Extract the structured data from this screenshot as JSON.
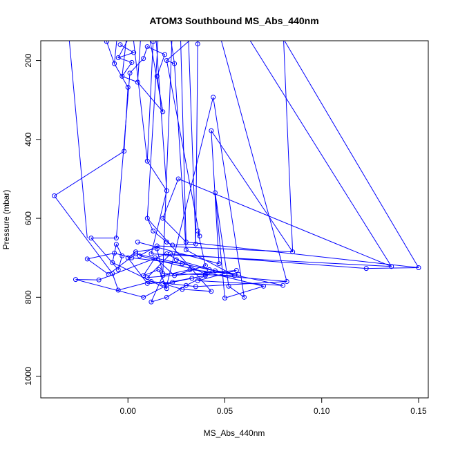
{
  "chart_data": {
    "type": "line",
    "title": "ATOM3 Southbound MS_Abs_440nm",
    "xlabel": "MS_Abs_440nm",
    "ylabel": "Pressure (mbar)",
    "xlim": [
      -0.045,
      0.155
    ],
    "ylim": [
      1055,
      150
    ],
    "y_reversed": true,
    "grid": false,
    "colors": {
      "series": "#0000ff",
      "axes": "#000000"
    },
    "x_ticks": [
      {
        "value": 0.0,
        "label": "0.00"
      },
      {
        "value": 0.05,
        "label": "0.05"
      },
      {
        "value": 0.1,
        "label": "0.10"
      },
      {
        "value": 0.15,
        "label": "0.15"
      }
    ],
    "y_ticks": [
      {
        "value": 200,
        "label": "200"
      },
      {
        "value": 400,
        "label": "400"
      },
      {
        "value": 600,
        "label": "600"
      },
      {
        "value": 800,
        "label": "800"
      },
      {
        "value": 1000,
        "label": "1000"
      }
    ],
    "series": [
      {
        "values": [
          {
            "x": -0.011,
            "y": 152
          },
          {
            "x": -0.007,
            "y": 208
          },
          {
            "x": 0.0,
            "y": 268
          },
          {
            "x": -0.002,
            "y": 430
          },
          {
            "x": -0.038,
            "y": 543
          },
          {
            "x": -0.008,
            "y": 740
          },
          {
            "x": -0.005,
            "y": 782
          },
          {
            "x": 0.012,
            "y": 760
          },
          {
            "x": 0.035,
            "y": 773
          },
          {
            "x": 0.082,
            "y": 760
          },
          {
            "x": 0.04,
            "y": 742
          },
          {
            "x": 0.02,
            "y": 690
          },
          {
            "x": -0.015,
            "y": 756
          },
          {
            "x": -0.027,
            "y": 755
          },
          {
            "x": 0.008,
            "y": 800
          },
          {
            "x": 0.02,
            "y": 770
          },
          {
            "x": 0.044,
            "y": 293
          },
          {
            "x": 0.06,
            "y": 800
          },
          {
            "x": 0.052,
            "y": 772
          },
          {
            "x": 0.045,
            "y": 535
          },
          {
            "x": 0.05,
            "y": 802
          },
          {
            "x": 0.07,
            "y": 772
          },
          {
            "x": 0.006,
            "y": 695
          },
          {
            "x": 0.015,
            "y": 670
          },
          {
            "x": 0.085,
            "y": 685
          },
          {
            "x": 0.043,
            "y": 378
          },
          {
            "x": 0.047,
            "y": 715
          },
          {
            "x": 0.005,
            "y": 660
          }
        ]
      },
      {
        "values": [
          {
            "x": 0.013,
            "y": 152
          },
          {
            "x": 0.01,
            "y": 455
          },
          {
            "x": 0.02,
            "y": 530
          },
          {
            "x": 0.012,
            "y": 690
          },
          {
            "x": 0.136,
            "y": 722
          },
          {
            "x": 0.026,
            "y": 500
          },
          {
            "x": 0.018,
            "y": 600
          },
          {
            "x": 0.03,
            "y": 660
          },
          {
            "x": 0.15,
            "y": 725
          },
          {
            "x": 0.123,
            "y": 727
          },
          {
            "x": 0.022,
            "y": 690
          },
          {
            "x": 0.01,
            "y": 750
          },
          {
            "x": 0.056,
            "y": 732
          },
          {
            "x": 0.036,
            "y": 758
          },
          {
            "x": 0.08,
            "y": 770
          },
          {
            "x": 0.004,
            "y": 690
          },
          {
            "x": -0.01,
            "y": 742
          },
          {
            "x": -0.021,
            "y": 703
          },
          {
            "x": -0.007,
            "y": 688
          },
          {
            "x": 0.002,
            "y": 700
          },
          {
            "x": 0.028,
            "y": 715
          },
          {
            "x": 0.042,
            "y": 730
          },
          {
            "x": 0.057,
            "y": 742
          },
          {
            "x": 0.032,
            "y": 730
          },
          {
            "x": 0.018,
            "y": 745
          },
          {
            "x": 0.012,
            "y": 812
          },
          {
            "x": 0.02,
            "y": 800
          },
          {
            "x": 0.03,
            "y": 770
          },
          {
            "x": 0.045,
            "y": 733
          },
          {
            "x": 0.025,
            "y": 705
          }
        ]
      },
      {
        "values": [
          {
            "x": -0.004,
            "y": 160
          },
          {
            "x": 0.003,
            "y": 180
          },
          {
            "x": -0.005,
            "y": 193
          },
          {
            "x": 0.002,
            "y": 205
          },
          {
            "x": -0.003,
            "y": 240
          },
          {
            "x": 0.005,
            "y": 255
          },
          {
            "x": 0.018,
            "y": 330
          },
          {
            "x": 0.015,
            "y": 240
          },
          {
            "x": 0.019,
            "y": 185
          },
          {
            "x": 0.01,
            "y": 165
          },
          {
            "x": 0.008,
            "y": 195
          },
          {
            "x": 0.001,
            "y": 232
          },
          {
            "x": -0.006,
            "y": 650
          },
          {
            "x": -0.019,
            "y": 650
          },
          {
            "x": -0.005,
            "y": 730
          },
          {
            "x": -0.003,
            "y": 695
          },
          {
            "x": -0.006,
            "y": 666
          },
          {
            "x": -0.008,
            "y": 712
          },
          {
            "x": 0.02,
            "y": 778
          },
          {
            "x": 0.016,
            "y": 730
          },
          {
            "x": 0.008,
            "y": 745
          },
          {
            "x": 0.014,
            "y": 700
          },
          {
            "x": 0.024,
            "y": 745
          },
          {
            "x": 0.04,
            "y": 720
          },
          {
            "x": 0.036,
            "y": 632
          },
          {
            "x": 0.037,
            "y": 645
          },
          {
            "x": 0.02,
            "y": 200
          },
          {
            "x": 0.024,
            "y": 208
          },
          {
            "x": 0.03,
            "y": 680
          },
          {
            "x": 0.055,
            "y": 745
          },
          {
            "x": 0.018,
            "y": 740
          },
          {
            "x": 0.015,
            "y": 677
          },
          {
            "x": 0.004,
            "y": 685
          },
          {
            "x": 0.0,
            "y": 700
          },
          {
            "x": 0.01,
            "y": 765
          },
          {
            "x": 0.023,
            "y": 762
          },
          {
            "x": 0.033,
            "y": 752
          },
          {
            "x": 0.04,
            "y": 745
          },
          {
            "x": 0.018,
            "y": 765
          },
          {
            "x": 0.028,
            "y": 780
          },
          {
            "x": 0.043,
            "y": 785
          },
          {
            "x": 0.01,
            "y": 600
          },
          {
            "x": 0.013,
            "y": 632
          },
          {
            "x": 0.02,
            "y": 660
          },
          {
            "x": 0.023,
            "y": 668
          },
          {
            "x": 0.035,
            "y": 665
          },
          {
            "x": 0.036,
            "y": 158
          }
        ]
      }
    ],
    "segments_from_top": [
      {
        "x_top": -0.031,
        "x_end": -0.021,
        "y_end": 650
      },
      {
        "x_top": -0.012,
        "x_end": -0.011,
        "y_end": 152
      },
      {
        "x_top": -0.005,
        "x_end": -0.007,
        "y_end": 208
      },
      {
        "x_top": 0.0,
        "x_end": -0.003,
        "y_end": 240
      },
      {
        "x_top": 0.002,
        "x_end": 0.01,
        "y_end": 455
      },
      {
        "x_top": 0.004,
        "x_end": -0.005,
        "y_end": 193
      },
      {
        "x_top": 0.007,
        "x_end": 0.005,
        "y_end": 255
      },
      {
        "x_top": 0.01,
        "x_end": 0.018,
        "y_end": 330
      },
      {
        "x_top": 0.012,
        "x_end": 0.013,
        "y_end": 152
      },
      {
        "x_top": 0.014,
        "x_end": 0.02,
        "y_end": 530
      },
      {
        "x_top": 0.016,
        "x_end": 0.01,
        "y_end": 600
      },
      {
        "x_top": 0.021,
        "x_end": 0.024,
        "y_end": 208
      },
      {
        "x_top": 0.023,
        "x_end": 0.018,
        "y_end": 740
      },
      {
        "x_top": 0.027,
        "x_end": 0.03,
        "y_end": 660
      },
      {
        "x_top": 0.031,
        "x_end": 0.035,
        "y_end": 665
      },
      {
        "x_top": 0.037,
        "x_end": 0.036,
        "y_end": 158
      },
      {
        "x_top": 0.041,
        "x_end": 0.02,
        "y_end": 200
      },
      {
        "x_top": 0.046,
        "x_end": 0.082,
        "y_end": 760
      },
      {
        "x_top": 0.058,
        "x_end": 0.136,
        "y_end": 722
      },
      {
        "x_top": 0.076,
        "x_end": 0.15,
        "y_end": 725
      },
      {
        "x_top": 0.08,
        "x_end": 0.085,
        "y_end": 685
      }
    ]
  }
}
